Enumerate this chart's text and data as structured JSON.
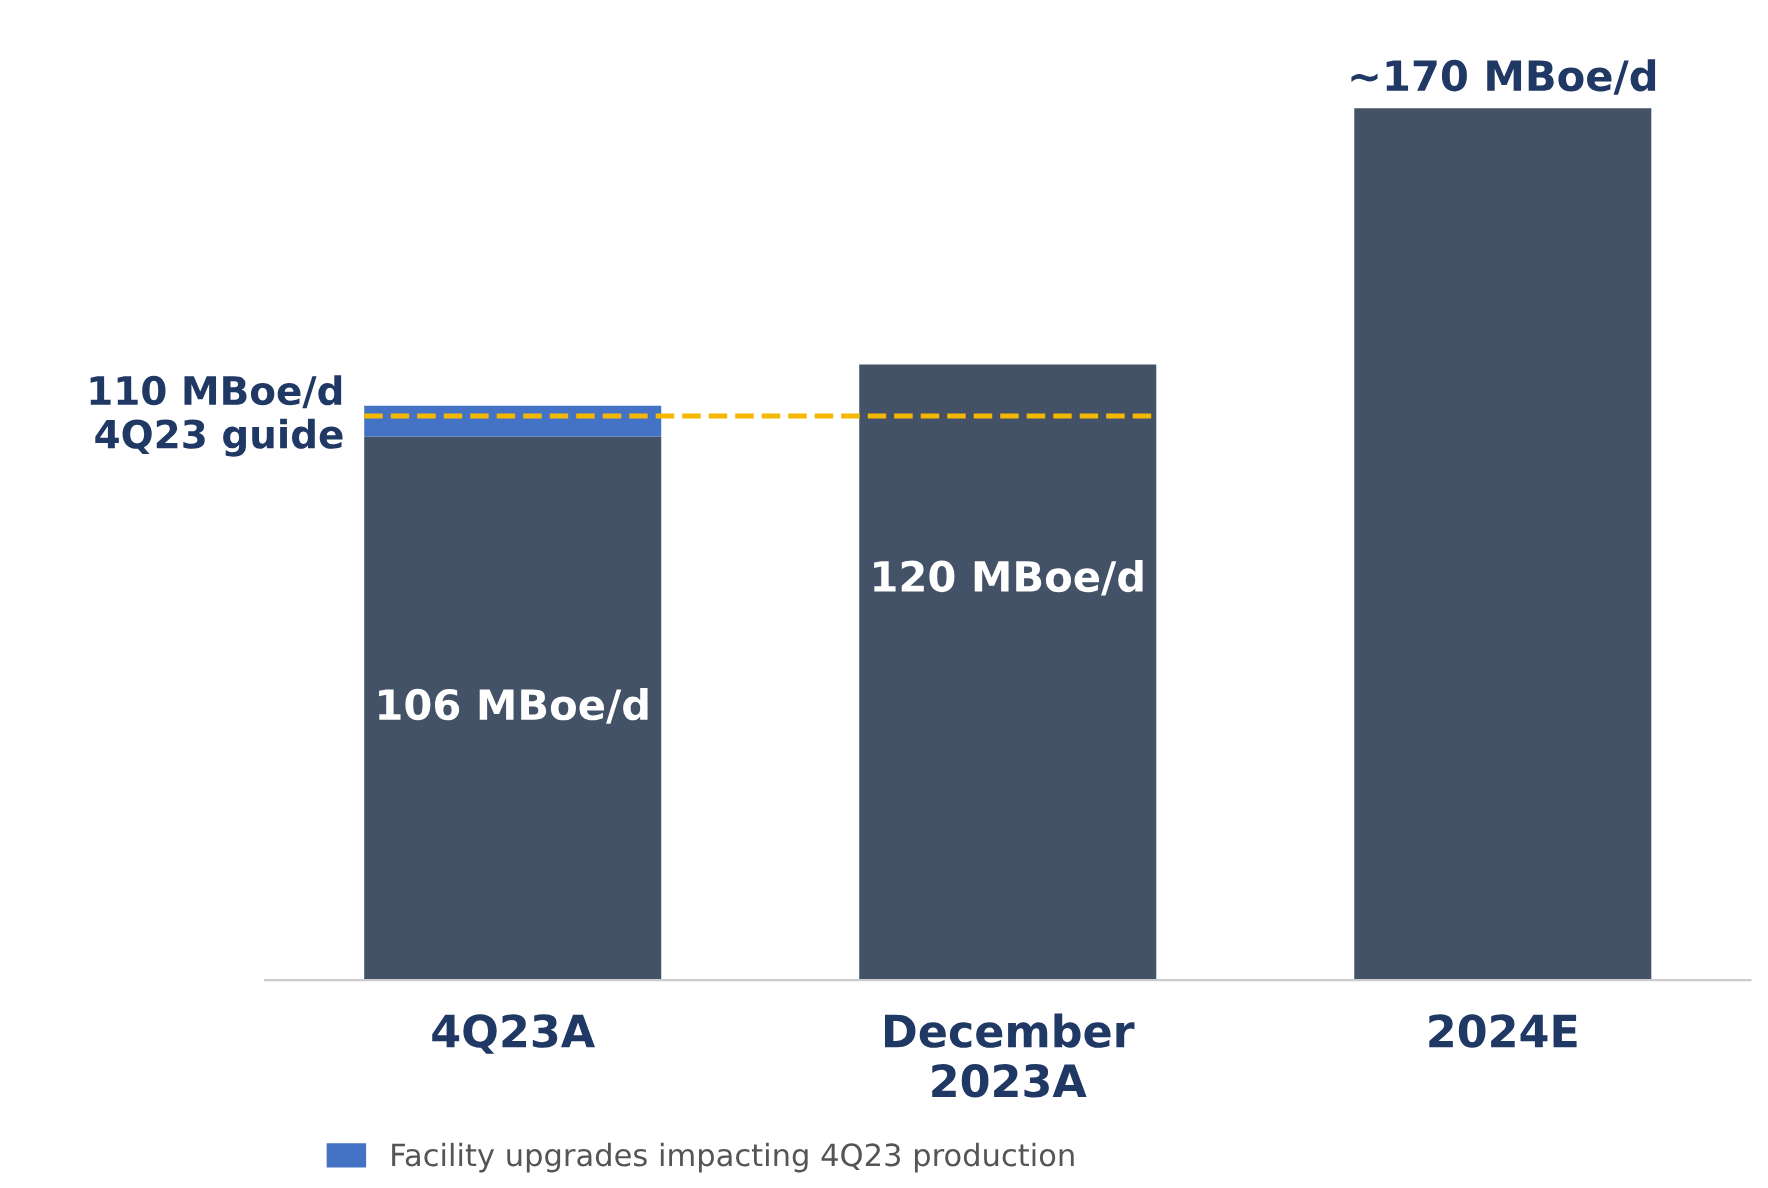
{
  "chart_data": {
    "type": "bar",
    "stacked": true,
    "categories": [
      "4Q23A",
      "December\n2023A",
      "2024E"
    ],
    "series": [
      {
        "color": "#435266",
        "values": [
          106,
          120,
          170
        ],
        "value_labels": [
          "106 MBoe/d",
          "120 MBoe/d",
          "~170 MBoe/d"
        ]
      },
      {
        "name": "Facility upgrades impacting 4Q23 production",
        "color": "#4472c4",
        "values": [
          6,
          null,
          null
        ]
      }
    ],
    "ref_lines": [
      {
        "axis": "y",
        "value": 110,
        "label": "110 MBoe/d\n4Q23 guide",
        "color": "#f5b800",
        "line_style": "dashed"
      }
    ],
    "legend": "bottom left",
    "grid": false
  }
}
